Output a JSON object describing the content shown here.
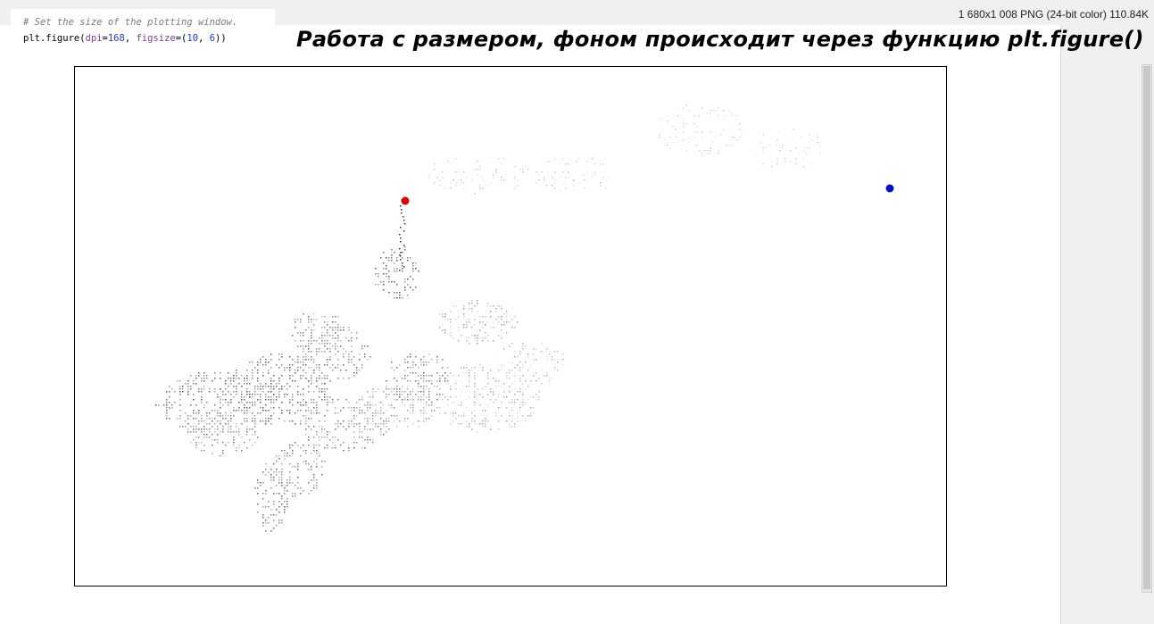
{
  "image_info": "1 680x1 008 PNG (24-bit color) 110.84K",
  "code": {
    "comment": "# Set the size of the plotting window.",
    "line_prefix": "plt.figure(",
    "arg1_name": "dpi",
    "eq1": "=",
    "arg1_value": "168",
    "sep": ", ",
    "arg2_name": "figsize",
    "eq2": "=(",
    "arg2_value_a": "10",
    "comma": ", ",
    "arg2_value_b": "6",
    "line_suffix": "))"
  },
  "heading": "Работа с размером, фоном происходит через функцию plt.figure()",
  "colors": {
    "start_point": "#e00000",
    "end_point": "#0010d8",
    "walk_dark": "#111111",
    "walk_light": "#d0d0d0",
    "frame": "#000000"
  },
  "chart_data": {
    "type": "scatter",
    "description_series": [
      {
        "name": "",
        "kind": "random-walk-points"
      }
    ],
    "start_point": {
      "color": "red"
    },
    "end_point": {
      "color": "blue"
    },
    "axes_visible": false
  }
}
